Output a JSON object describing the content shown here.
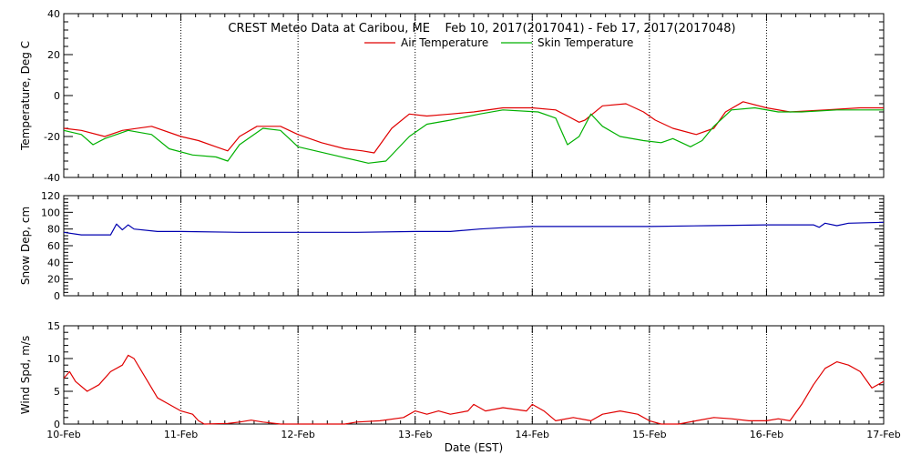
{
  "title": "CREST Meteo Data at Caribou, ME    Feb 10, 2017(2017041) - Feb 17, 2017(2017048)",
  "xlabel": "Date (EST)",
  "x_ticks": [
    "10-Feb",
    "11-Feb",
    "12-Feb",
    "13-Feb",
    "14-Feb",
    "15-Feb",
    "16-Feb",
    "17-Feb"
  ],
  "chart_data": [
    {
      "type": "line",
      "ylabel": "Temperature, Deg C",
      "ylim": [
        -40,
        40
      ],
      "yticks": [
        -40,
        -20,
        0,
        20,
        40
      ],
      "xlim": [
        0,
        7
      ],
      "x_unit": "days since 10-Feb 00:00 EST",
      "grid": "vertical dotted lines at each day",
      "legend": "top-center",
      "series": [
        {
          "name": "Air Temperature",
          "color": "#e00000",
          "points": [
            [
              0,
              -16
            ],
            [
              0.15,
              -17
            ],
            [
              0.35,
              -20
            ],
            [
              0.5,
              -17
            ],
            [
              0.75,
              -15
            ],
            [
              1.0,
              -20
            ],
            [
              1.15,
              -22
            ],
            [
              1.3,
              -25
            ],
            [
              1.4,
              -27
            ],
            [
              1.5,
              -20
            ],
            [
              1.65,
              -15
            ],
            [
              1.85,
              -15
            ],
            [
              2.0,
              -19
            ],
            [
              2.2,
              -23
            ],
            [
              2.4,
              -26
            ],
            [
              2.55,
              -27
            ],
            [
              2.65,
              -28
            ],
            [
              2.8,
              -16
            ],
            [
              2.95,
              -9
            ],
            [
              3.1,
              -10
            ],
            [
              3.3,
              -9
            ],
            [
              3.5,
              -8
            ],
            [
              3.75,
              -6
            ],
            [
              4.0,
              -6
            ],
            [
              4.2,
              -7
            ],
            [
              4.3,
              -10
            ],
            [
              4.4,
              -13
            ],
            [
              4.45,
              -12
            ],
            [
              4.6,
              -5
            ],
            [
              4.8,
              -4
            ],
            [
              4.95,
              -8
            ],
            [
              5.05,
              -12
            ],
            [
              5.2,
              -16
            ],
            [
              5.4,
              -19
            ],
            [
              5.55,
              -16
            ],
            [
              5.65,
              -8
            ],
            [
              5.8,
              -3
            ],
            [
              6.0,
              -6
            ],
            [
              6.2,
              -8
            ],
            [
              6.5,
              -7
            ],
            [
              6.8,
              -6
            ],
            [
              7.0,
              -6
            ]
          ]
        },
        {
          "name": "Skin Temperature",
          "color": "#00b000",
          "points": [
            [
              0,
              -17
            ],
            [
              0.15,
              -19
            ],
            [
              0.25,
              -24
            ],
            [
              0.35,
              -21
            ],
            [
              0.55,
              -17
            ],
            [
              0.75,
              -19
            ],
            [
              0.9,
              -26
            ],
            [
              1.1,
              -29
            ],
            [
              1.3,
              -30
            ],
            [
              1.4,
              -32
            ],
            [
              1.5,
              -24
            ],
            [
              1.7,
              -16
            ],
            [
              1.85,
              -17
            ],
            [
              2.0,
              -25
            ],
            [
              2.3,
              -29
            ],
            [
              2.6,
              -33
            ],
            [
              2.75,
              -32
            ],
            [
              2.95,
              -20
            ],
            [
              3.1,
              -14
            ],
            [
              3.3,
              -12
            ],
            [
              3.55,
              -9
            ],
            [
              3.75,
              -7
            ],
            [
              4.05,
              -8
            ],
            [
              4.2,
              -11
            ],
            [
              4.3,
              -24
            ],
            [
              4.4,
              -20
            ],
            [
              4.5,
              -9
            ],
            [
              4.6,
              -15
            ],
            [
              4.75,
              -20
            ],
            [
              4.95,
              -22
            ],
            [
              5.1,
              -23
            ],
            [
              5.2,
              -21
            ],
            [
              5.35,
              -25
            ],
            [
              5.45,
              -22
            ],
            [
              5.55,
              -15
            ],
            [
              5.7,
              -7
            ],
            [
              5.9,
              -6
            ],
            [
              6.1,
              -8
            ],
            [
              6.3,
              -8
            ],
            [
              6.6,
              -7
            ],
            [
              6.9,
              -7
            ],
            [
              7.0,
              -7
            ]
          ]
        }
      ]
    },
    {
      "type": "line",
      "ylabel": "Snow Dep, cm",
      "ylim": [
        0,
        120
      ],
      "yticks": [
        0,
        20,
        40,
        60,
        80,
        100,
        120
      ],
      "xlim": [
        0,
        7
      ],
      "x_unit": "days since 10-Feb 00:00 EST",
      "grid": "vertical dotted lines at each day",
      "series": [
        {
          "name": "",
          "color": "#0000b0",
          "points": [
            [
              0,
              76
            ],
            [
              0.15,
              73
            ],
            [
              0.4,
              73
            ],
            [
              0.45,
              86
            ],
            [
              0.5,
              79
            ],
            [
              0.55,
              85
            ],
            [
              0.6,
              80
            ],
            [
              0.8,
              77
            ],
            [
              1.0,
              77
            ],
            [
              1.5,
              76
            ],
            [
              2.0,
              76
            ],
            [
              2.5,
              76
            ],
            [
              3.0,
              77
            ],
            [
              3.3,
              77
            ],
            [
              3.55,
              80
            ],
            [
              3.8,
              82
            ],
            [
              4.0,
              83
            ],
            [
              4.5,
              83
            ],
            [
              5.0,
              83
            ],
            [
              5.5,
              84
            ],
            [
              6.0,
              85
            ],
            [
              6.4,
              85
            ],
            [
              6.45,
              82
            ],
            [
              6.5,
              87
            ],
            [
              6.6,
              84
            ],
            [
              6.7,
              87
            ],
            [
              7.0,
              88
            ]
          ]
        }
      ]
    },
    {
      "type": "line",
      "ylabel": "Wind Spd, m/s",
      "ylim": [
        0,
        15
      ],
      "yticks": [
        0,
        5,
        10,
        15
      ],
      "xlim": [
        0,
        7
      ],
      "x_unit": "days since 10-Feb 00:00 EST",
      "grid": "vertical dotted lines at each day",
      "series": [
        {
          "name": "",
          "color": "#e00000",
          "points": [
            [
              0,
              7
            ],
            [
              0.05,
              8
            ],
            [
              0.1,
              6.5
            ],
            [
              0.2,
              5
            ],
            [
              0.3,
              6
            ],
            [
              0.4,
              8
            ],
            [
              0.5,
              9
            ],
            [
              0.55,
              10.5
            ],
            [
              0.6,
              10
            ],
            [
              0.7,
              7
            ],
            [
              0.8,
              4
            ],
            [
              0.9,
              3
            ],
            [
              1.0,
              2
            ],
            [
              1.1,
              1.5
            ],
            [
              1.15,
              0.5
            ],
            [
              1.2,
              0
            ],
            [
              1.4,
              0.1
            ],
            [
              1.5,
              0.3
            ],
            [
              1.6,
              0.6
            ],
            [
              1.7,
              0.3
            ],
            [
              1.85,
              0
            ],
            [
              2.0,
              0
            ],
            [
              2.2,
              0
            ],
            [
              2.4,
              0
            ],
            [
              2.5,
              0.3
            ],
            [
              2.7,
              0.5
            ],
            [
              2.9,
              1
            ],
            [
              3.0,
              2
            ],
            [
              3.1,
              1.5
            ],
            [
              3.2,
              2
            ],
            [
              3.3,
              1.5
            ],
            [
              3.45,
              2
            ],
            [
              3.5,
              3
            ],
            [
              3.6,
              2
            ],
            [
              3.75,
              2.5
            ],
            [
              3.95,
              2
            ],
            [
              4.0,
              3
            ],
            [
              4.1,
              2
            ],
            [
              4.2,
              0.5
            ],
            [
              4.35,
              1
            ],
            [
              4.5,
              0.5
            ],
            [
              4.6,
              1.5
            ],
            [
              4.75,
              2
            ],
            [
              4.9,
              1.5
            ],
            [
              5.0,
              0.5
            ],
            [
              5.1,
              0
            ],
            [
              5.25,
              0
            ],
            [
              5.4,
              0.5
            ],
            [
              5.55,
              1
            ],
            [
              5.7,
              0.8
            ],
            [
              5.85,
              0.5
            ],
            [
              6.0,
              0.5
            ],
            [
              6.1,
              0.8
            ],
            [
              6.2,
              0.5
            ],
            [
              6.3,
              3
            ],
            [
              6.4,
              6
            ],
            [
              6.5,
              8.5
            ],
            [
              6.6,
              9.5
            ],
            [
              6.7,
              9
            ],
            [
              6.8,
              8
            ],
            [
              6.9,
              5.5
            ],
            [
              7.0,
              6.5
            ]
          ]
        }
      ]
    }
  ]
}
